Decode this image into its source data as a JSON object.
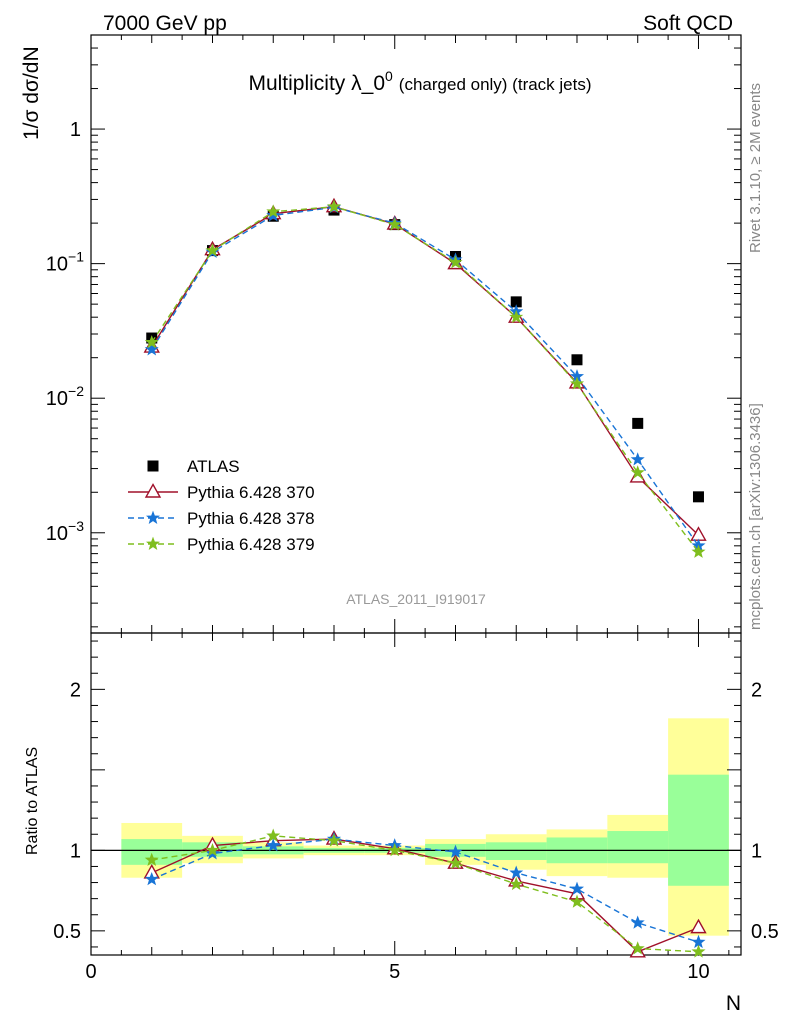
{
  "header": {
    "left": "7000 GeV pp",
    "right": "Soft QCD"
  },
  "side_text": {
    "rivet": "Rivet 3.1.10, ≥ 2M events",
    "mcplots": "mcplots.cern.ch [arXiv:1306.3436]"
  },
  "chart_data": [
    {
      "type": "scatter",
      "panel": "main",
      "title": "Multiplicity λ_0",
      "title_sup": "0",
      "title_suffix": "(charged only) (track jets)",
      "ylabel": "1/σ dσ/dN",
      "watermark": "ATLAS_2011_I919017",
      "yscale": "log",
      "ylim": [
        0.00018,
        5
      ],
      "xlim": [
        0,
        10.7
      ],
      "yticks": [
        {
          "value": 1,
          "label": "1"
        },
        {
          "value": 0.1,
          "label": "10",
          "sup": "−1"
        },
        {
          "value": 0.01,
          "label": "10",
          "sup": "−2"
        },
        {
          "value": 0.001,
          "label": "10",
          "sup": "−3"
        }
      ],
      "legend_position": "middle-left",
      "x": [
        1,
        2,
        3,
        4,
        5,
        6,
        7,
        8,
        9,
        10
      ],
      "series": [
        {
          "name": "ATLAS",
          "color": "#000000",
          "marker": "square",
          "values": [
            0.028,
            0.125,
            0.225,
            0.25,
            0.195,
            0.113,
            0.052,
            0.0193,
            0.0065,
            0.00185
          ]
        },
        {
          "name": "Pythia 6.428 370",
          "color": "#a0102a",
          "marker": "triangle",
          "dash": "solid",
          "values": [
            0.024,
            0.127,
            0.235,
            0.265,
            0.197,
            0.1,
            0.04,
            0.013,
            0.0026,
            0.00096
          ]
        },
        {
          "name": "Pythia 6.428 378",
          "color": "#1874d6",
          "marker": "star",
          "dash": "dashed",
          "values": [
            0.023,
            0.122,
            0.228,
            0.262,
            0.2,
            0.107,
            0.044,
            0.0145,
            0.0035,
            0.0008
          ]
        },
        {
          "name": "Pythia 6.428 379",
          "color": "#7fbe1e",
          "marker": "star",
          "dash": "dashed",
          "values": [
            0.026,
            0.125,
            0.243,
            0.265,
            0.195,
            0.102,
            0.04,
            0.0128,
            0.0028,
            0.00072
          ]
        }
      ]
    },
    {
      "type": "scatter",
      "panel": "ratio",
      "ylabel": "Ratio to ATLAS",
      "xlabel": "N",
      "ylim": [
        0.35,
        2.35
      ],
      "xlim": [
        0,
        10.7
      ],
      "yticks": [
        {
          "value": 0.5,
          "label": "0.5"
        },
        {
          "value": 1,
          "label": "1"
        },
        {
          "value": 2,
          "label": "2"
        }
      ],
      "xticks": [
        {
          "value": 0,
          "label": "0"
        },
        {
          "value": 5,
          "label": "5"
        },
        {
          "value": 10,
          "label": "10"
        }
      ],
      "bands": {
        "x_edges": [
          0.5,
          1.5,
          2.5,
          3.5,
          4.5,
          5.5,
          6.5,
          7.5,
          8.5,
          9.5,
          10.5
        ],
        "yellow_lo": [
          0.83,
          0.92,
          0.95,
          0.97,
          0.97,
          0.91,
          0.88,
          0.84,
          0.83,
          0.47
        ],
        "yellow_hi": [
          1.17,
          1.09,
          1.05,
          1.03,
          1.03,
          1.07,
          1.1,
          1.13,
          1.22,
          1.82
        ],
        "green_lo": [
          0.91,
          0.96,
          0.975,
          0.985,
          0.985,
          0.96,
          0.94,
          0.92,
          0.92,
          0.78
        ],
        "green_hi": [
          1.07,
          1.05,
          1.025,
          1.015,
          1.015,
          1.04,
          1.05,
          1.08,
          1.12,
          1.47
        ]
      },
      "x": [
        1,
        2,
        3,
        4,
        5,
        6,
        7,
        8,
        9,
        10
      ],
      "series": [
        {
          "name": "Pythia 6.428 370",
          "color": "#a0102a",
          "marker": "triangle",
          "dash": "solid",
          "values": [
            0.86,
            1.03,
            1.06,
            1.07,
            1.01,
            0.92,
            0.81,
            0.73,
            0.37,
            0.52
          ]
        },
        {
          "name": "Pythia 6.428 378",
          "color": "#1874d6",
          "marker": "star",
          "dash": "dashed",
          "values": [
            0.82,
            0.98,
            1.03,
            1.07,
            1.03,
            0.99,
            0.86,
            0.76,
            0.55,
            0.43
          ]
        },
        {
          "name": "Pythia 6.428 379",
          "color": "#7fbe1e",
          "marker": "star",
          "dash": "dashed",
          "values": [
            0.94,
            1.0,
            1.09,
            1.06,
            1.0,
            0.92,
            0.79,
            0.68,
            0.39,
            0.37
          ]
        }
      ]
    }
  ]
}
